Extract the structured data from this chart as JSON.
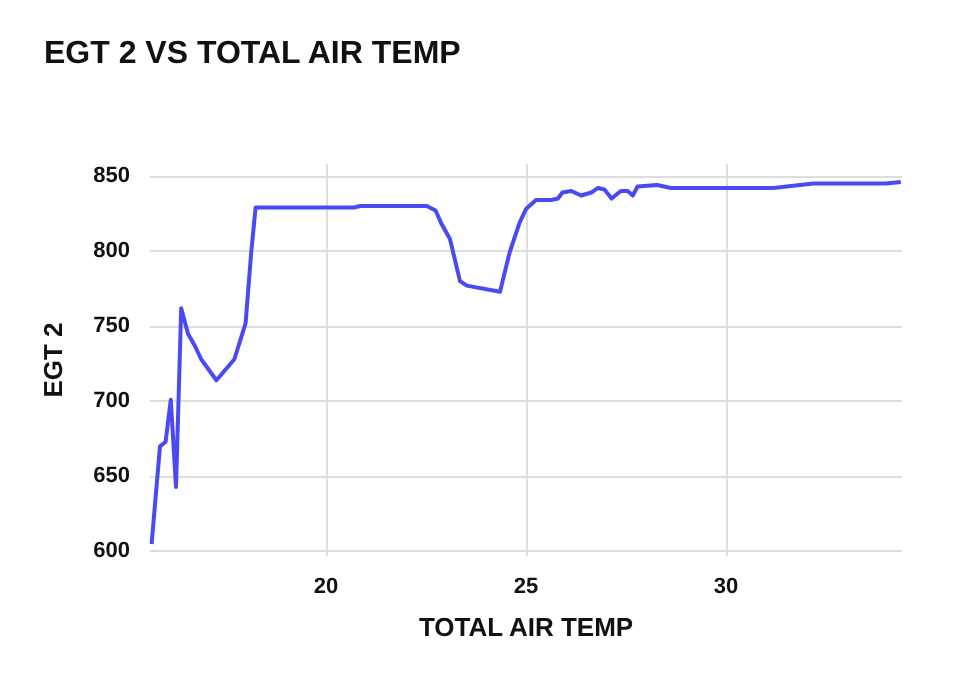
{
  "chart_data": {
    "type": "line",
    "title": "EGT 2 VS TOTAL AIR TEMP",
    "xlabel": "TOTAL AIR TEMP",
    "ylabel": "EGT 2",
    "x": [
      15.64,
      15.85,
      15.99,
      16.12,
      16.25,
      16.38,
      16.55,
      16.72,
      16.88,
      17.26,
      17.71,
      17.99,
      18.13,
      18.24,
      20.7,
      20.86,
      22.52,
      22.74,
      22.89,
      23.1,
      23.35,
      23.52,
      24.35,
      24.59,
      24.84,
      25.0,
      25.25,
      25.63,
      25.8,
      25.91,
      26.13,
      26.38,
      26.63,
      26.79,
      26.96,
      27.14,
      27.37,
      27.54,
      27.67,
      27.79,
      28.28,
      28.62,
      31.19,
      32.18,
      34.0,
      34.37
    ],
    "series": [
      {
        "color": "#4a4af5",
        "values": [
          605,
          670,
          673,
          701,
          643,
          762,
          745,
          737,
          728,
          714,
          728,
          752,
          799,
          829,
          829,
          830,
          830,
          827,
          818,
          808,
          780,
          777,
          773,
          799,
          819,
          828,
          834,
          834,
          835,
          839,
          840,
          837,
          839,
          842,
          841,
          835,
          840,
          840,
          837,
          843,
          844,
          842,
          842,
          845,
          845,
          846
        ]
      }
    ],
    "xlim": [
      15.6,
      34.4
    ],
    "xticks": [
      20,
      25,
      30
    ],
    "ylim": [
      597,
      858
    ],
    "yticks": [
      600,
      650,
      700,
      750,
      800,
      850
    ],
    "grid": true,
    "marker": "none",
    "line_style": "solid"
  }
}
